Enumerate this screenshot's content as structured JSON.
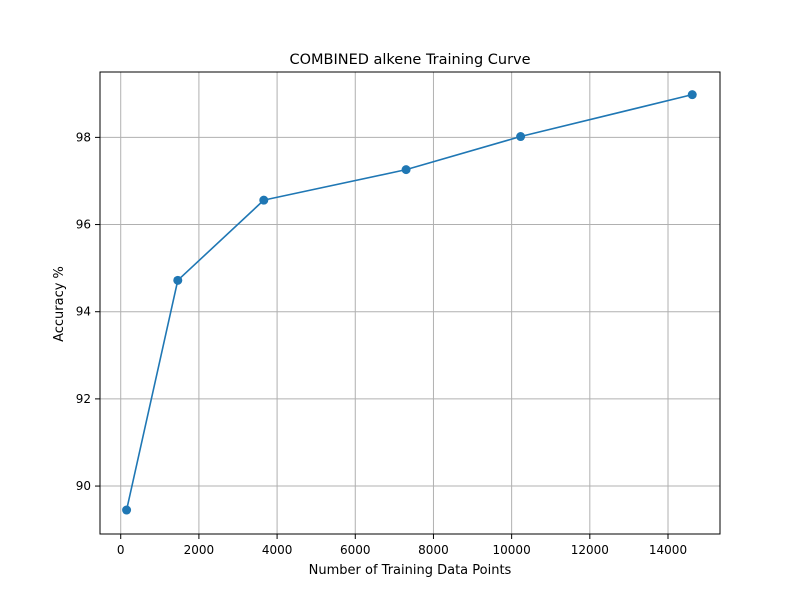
{
  "chart_data": {
    "type": "line",
    "title": "COMBINED alkene Training Curve",
    "xlabel": "Number of Training Data Points",
    "ylabel": "Accuracy %",
    "xlim": [
      -530,
      15330
    ],
    "ylim": [
      88.9,
      99.5
    ],
    "xticks": [
      0,
      2000,
      4000,
      6000,
      8000,
      10000,
      12000,
      14000
    ],
    "yticks": [
      90,
      92,
      94,
      96,
      98
    ],
    "grid": true,
    "legend": "none",
    "series": [
      {
        "color": "#1f77b4",
        "marker": "circle",
        "x": [
          150,
          1460,
          3660,
          7300,
          10230,
          14620
        ],
        "y": [
          89.45,
          94.72,
          96.56,
          97.26,
          98.02,
          98.98
        ]
      }
    ]
  }
}
